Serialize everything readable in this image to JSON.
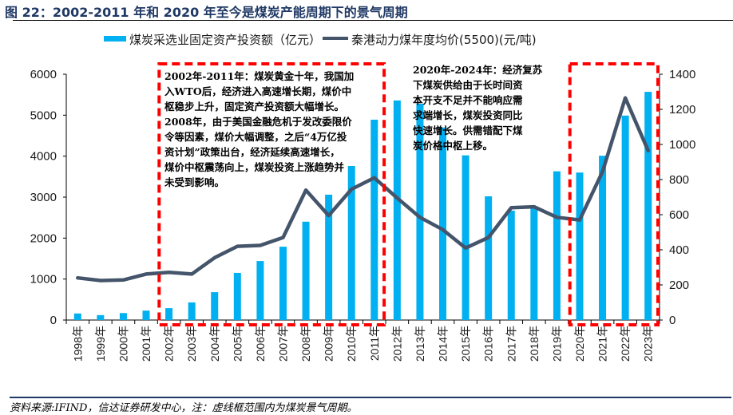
{
  "figure": {
    "title": "图 22：2002-2011 年和 2020 年至今是煤炭产能周期下的景气周期",
    "source": "资料来源:IFIND，信达证券研发中心，注：虚线框范围内为煤炭景气周期。"
  },
  "colors": {
    "bar": "#00b0f0",
    "line": "#44546a",
    "highlight_box": "#ff0000",
    "title": "#1f3864"
  },
  "annotations": {
    "box1": {
      "lines": [
        "2002年-2011年：煤炭黄金十年，我国加",
        "入WTO后，经济进入高速增长期，煤价中",
        "枢稳步上升，固定资产投资额大幅增长。",
        "2008年，由于美国金融危机于发改委限价",
        "令等因素，煤价大幅调整，之后“4万亿投",
        "资计划”政策出台，经济延续高速增长，",
        "煤价中枢震荡向上，煤炭投资上涨趋势并",
        "未受到影响。"
      ]
    },
    "box2": {
      "lines": [
        "2020年-2024年：经济复苏",
        "下煤炭供给由于长时间资",
        "本开支不足并不能响应需",
        "求端增长，煤炭投资同比",
        "快速增长。供需错配下煤",
        "炭价格中枢上移。"
      ]
    }
  },
  "chart_data": {
    "type": "bar+line",
    "title": "图 22：2002-2011 年和 2020 年至今是煤炭产能周期下的景气周期",
    "categories": [
      "1998年",
      "1999年",
      "2000年",
      "2001年",
      "2002年",
      "2003年",
      "2004年",
      "2005年",
      "2006年",
      "2007年",
      "2008年",
      "2009年",
      "2010年",
      "2011年",
      "2012年",
      "2013年",
      "2014年",
      "2015年",
      "2016年",
      "2017年",
      "2018年",
      "2019年",
      "2020年",
      "2021年",
      "2022年",
      "2023年"
    ],
    "series": [
      {
        "name": "煤炭采选业固定资产投资额（亿元）",
        "type": "bar",
        "axis": "left",
        "values": [
          160,
          120,
          170,
          230,
          290,
          430,
          680,
          1150,
          1440,
          1790,
          2400,
          3060,
          3760,
          4890,
          5360,
          5280,
          4700,
          4020,
          3020,
          2670,
          2770,
          3630,
          3600,
          4010,
          4990,
          5570
        ]
      },
      {
        "name": "秦港动力煤年度均价(5500)(元/吨)",
        "type": "line",
        "axis": "right",
        "values": [
          240,
          225,
          228,
          262,
          272,
          262,
          355,
          420,
          425,
          470,
          740,
          595,
          745,
          810,
          695,
          585,
          515,
          410,
          470,
          640,
          645,
          585,
          570,
          845,
          1265,
          965
        ]
      }
    ],
    "y_left": {
      "min": 0,
      "max": 6000,
      "ticks": [
        "0",
        "1000",
        "2000",
        "3000",
        "4000",
        "5000",
        "6000"
      ]
    },
    "y_right": {
      "min": 0,
      "max": 1400,
      "ticks": [
        "0",
        "200",
        "400",
        "600",
        "800",
        "1000",
        "1200",
        "1400"
      ]
    },
    "highlight_ranges": [
      {
        "from": "2002年",
        "to": "2011年"
      },
      {
        "from": "2020年",
        "to": "2023年"
      }
    ],
    "legend_position": "top",
    "grid": false
  }
}
